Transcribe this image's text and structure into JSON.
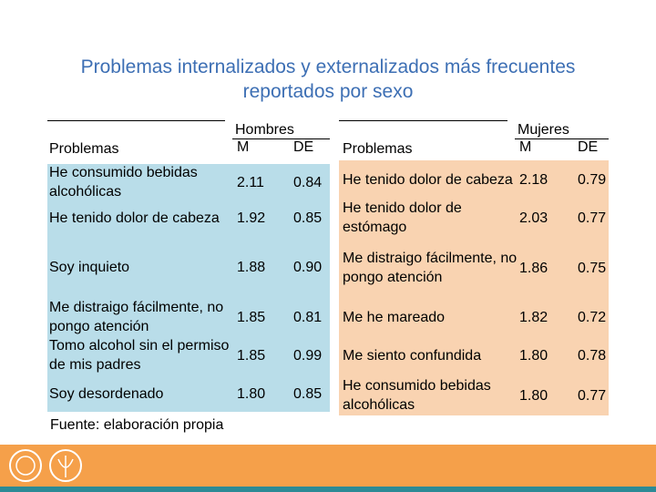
{
  "title": "Problemas internalizados y externalizados más frecuentes reportados por sexo",
  "table": {
    "groups": [
      {
        "label": "Hombres",
        "columns": [
          "Problemas",
          "M",
          "DE"
        ],
        "rows": [
          [
            "He consumido bebidas alcohólicas",
            "2.11",
            "0.84"
          ],
          [
            "He tenido dolor de cabeza",
            "1.92",
            "0.85"
          ],
          [
            "Soy inquieto",
            "1.88",
            "0.90"
          ],
          [
            "Me distraigo fácilmente, no pongo atención",
            "1.85",
            "0.81"
          ],
          [
            "Tomo alcohol sin el permiso de mis padres",
            "1.85",
            "0.99"
          ],
          [
            "Soy desordenado",
            "1.80",
            "0.85"
          ]
        ]
      },
      {
        "label": "Mujeres",
        "columns": [
          "Problemas",
          "M",
          "DE"
        ],
        "rows": [
          [
            "He tenido dolor de cabeza",
            "2.18",
            "0.79"
          ],
          [
            "He tenido dolor de estómago",
            "2.03",
            "0.77"
          ],
          [
            "Me distraigo fácilmente, no pongo atención",
            "1.86",
            "0.75"
          ],
          [
            "Me he mareado",
            "1.82",
            "0.72"
          ],
          [
            "Me siento confundida",
            "1.80",
            "0.78"
          ],
          [
            "He consumido bebidas alcohólicas",
            "1.80",
            "0.77"
          ]
        ]
      }
    ]
  },
  "source": "Fuente: elaboración propia"
}
